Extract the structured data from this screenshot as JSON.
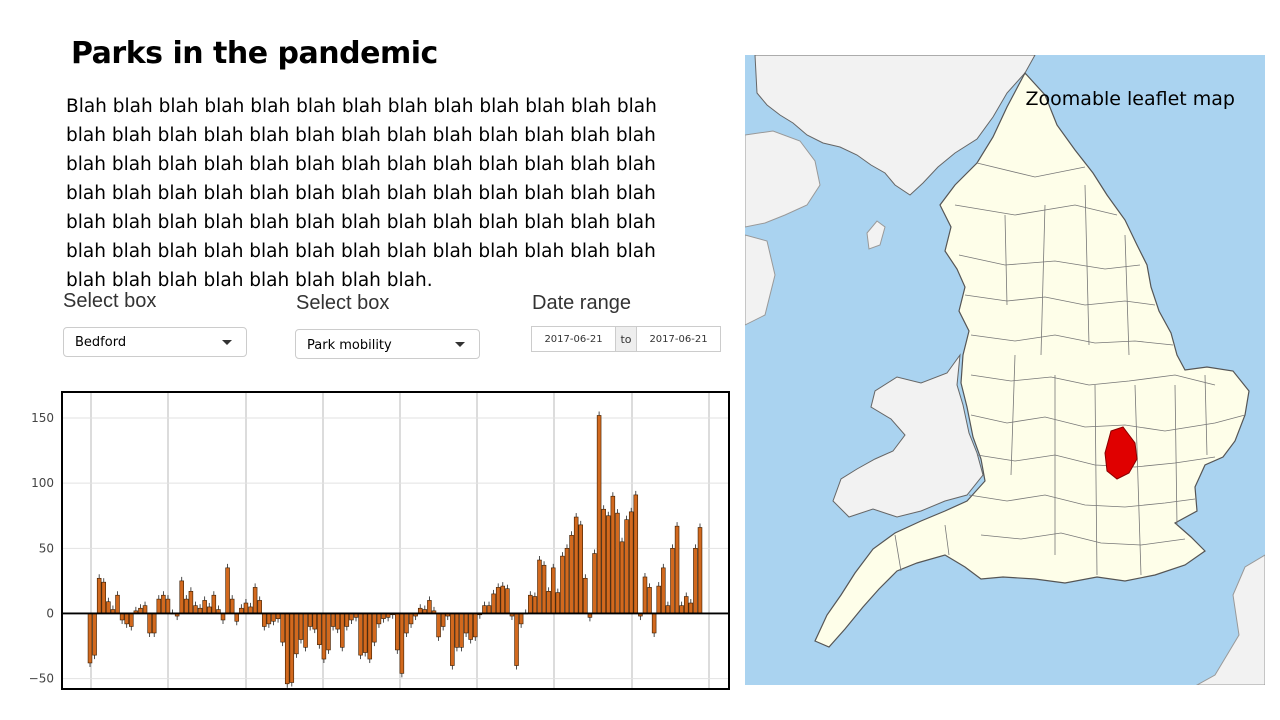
{
  "page": {
    "title": "Parks in the pandemic",
    "body": "Blah blah blah blah blah blah blah blah blah blah blah blah blah blah blah blah blah blah blah blah blah blah blah blah blah blah blah blah blah blah blah blah blah blah blah blah blah blah blah blah blah blah blah blah blah blah blah blah blah blah blah blah blah blah blah blah blah blah blah blah blah blah blah blah blah blah blah blah blah blah blah blah blah blah blah blah blah blah blah blah blah blah blah blah blah blah."
  },
  "controls": {
    "select1": {
      "label": "Select box",
      "value": "Bedford"
    },
    "select2": {
      "label": "Select box",
      "value": "Park mobility"
    },
    "date_range": {
      "label": "Date range",
      "start": "2017-06-21",
      "separator": "to",
      "end": "2017-06-21"
    }
  },
  "map": {
    "caption": "Zoomable leaflet map",
    "highlighted_region": "Bedford",
    "colors": {
      "sea": "#aad3f0",
      "land": "#fefee9",
      "other_land": "#f2f2f2",
      "highlight": "#e00000",
      "border": "#555555"
    }
  },
  "chart_data": {
    "type": "bar",
    "ylim": [
      -58,
      170
    ],
    "yticks": [
      -50,
      0,
      50,
      100,
      150
    ],
    "grid": true,
    "bar_color": "#d2691e",
    "values": [
      -38,
      -32,
      27,
      24,
      9,
      3,
      14,
      -5,
      -8,
      -10,
      2,
      4,
      6,
      -15,
      -15,
      11,
      14,
      11,
      0,
      -2,
      25,
      11,
      17,
      6,
      4,
      10,
      5,
      14,
      3,
      -5,
      35,
      11,
      -6,
      4,
      8,
      5,
      20,
      10,
      -10,
      -8,
      -6,
      -4,
      -22,
      -54,
      -53,
      -31,
      -20,
      -26,
      -10,
      -12,
      -24,
      -35,
      -28,
      -10,
      -12,
      -26,
      -10,
      -5,
      -3,
      -32,
      -30,
      -35,
      -22,
      -8,
      -4,
      -3,
      -1,
      -28,
      -46,
      -15,
      -8,
      -2,
      4,
      3,
      10,
      2,
      -18,
      -10,
      -2,
      -40,
      -26,
      -26,
      -15,
      -20,
      -18,
      -1,
      6,
      6,
      15,
      20,
      21,
      19,
      -2,
      -40,
      -8,
      0,
      14,
      13,
      41,
      37,
      17,
      35,
      16,
      44,
      50,
      60,
      74,
      68,
      27,
      -3,
      46,
      152,
      80,
      75,
      90,
      77,
      55,
      72,
      78,
      91,
      -2,
      28,
      20,
      -15,
      21,
      35,
      6,
      50,
      67,
      6,
      13,
      8,
      50,
      66
    ]
  }
}
